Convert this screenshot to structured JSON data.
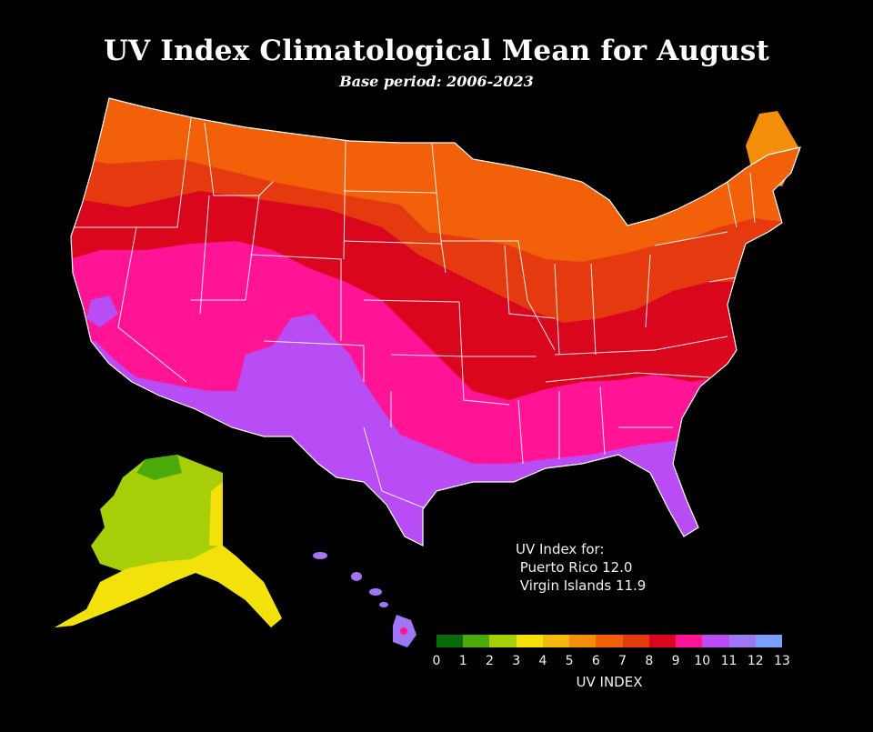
{
  "map": {
    "title": "UV Index Climatological Mean for August",
    "subtitle": "Base period: 2006-2023"
  },
  "info_box": {
    "heading": "UV Index for:",
    "lines": [
      " Puerto Rico 12.0",
      " Virgin Islands 11.9"
    ]
  },
  "legend": {
    "title": "UV INDEX",
    "ticks": [
      "0",
      "1",
      "2",
      "3",
      "4",
      "5",
      "6",
      "7",
      "8",
      "9",
      "10",
      "11",
      "12",
      "13"
    ],
    "colors": [
      "#0a6b0a",
      "#4ca90a",
      "#a6cf0a",
      "#f2e20a",
      "#f6bb0a",
      "#f48f0a",
      "#f2600a",
      "#e53a0f",
      "#d9061e",
      "#ff1496",
      "#b84cf5",
      "#9f77f5",
      "#7aa0ff"
    ]
  },
  "region_colors": {
    "uv6": "#f2600a",
    "uv7": "#e53a0f",
    "uv8": "#d9061e",
    "uv9": "#ff1496",
    "uv10": "#b84cf5",
    "uv11": "#9f77f5",
    "uv12": "#7aa0ff",
    "uv2": "#a6cf0a",
    "uv3": "#f2e20a",
    "uv5": "#f48f0a"
  }
}
